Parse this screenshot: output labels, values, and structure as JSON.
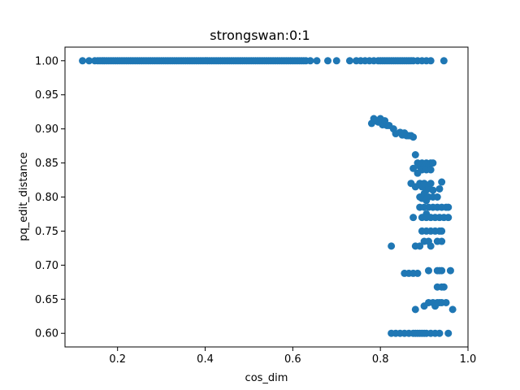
{
  "chart_data": {
    "type": "scatter",
    "title": "strongswan:0:1",
    "xlabel": "cos_dim",
    "ylabel": "pq_edit_distance",
    "xlim": [
      0.08,
      1.0
    ],
    "ylim": [
      0.58,
      1.02
    ],
    "xticks": [
      0.2,
      0.4,
      0.6,
      0.8,
      1.0
    ],
    "xtick_labels": [
      "0.2",
      "0.4",
      "0.6",
      "0.8",
      "1.0"
    ],
    "yticks": [
      0.6,
      0.65,
      0.7,
      0.75,
      0.8,
      0.85,
      0.9,
      0.95,
      1.0
    ],
    "ytick_labels": [
      "0.60",
      "0.65",
      "0.70",
      "0.75",
      "0.80",
      "0.85",
      "0.90",
      "0.95",
      "1.00"
    ],
    "grid": false,
    "marker_color": "#1f77b4",
    "series": [
      {
        "points": [
          [
            0.12,
            1.0
          ],
          [
            0.135,
            1.0
          ],
          [
            0.148,
            1.0
          ],
          [
            0.155,
            1.0
          ],
          [
            0.16,
            1.0
          ],
          [
            0.165,
            1.0
          ],
          [
            0.17,
            1.0
          ],
          [
            0.175,
            1.0
          ],
          [
            0.18,
            1.0
          ],
          [
            0.185,
            1.0
          ],
          [
            0.19,
            1.0
          ],
          [
            0.195,
            1.0
          ],
          [
            0.2,
            1.0
          ],
          [
            0.205,
            1.0
          ],
          [
            0.21,
            1.0
          ],
          [
            0.215,
            1.0
          ],
          [
            0.22,
            1.0
          ],
          [
            0.225,
            1.0
          ],
          [
            0.23,
            1.0
          ],
          [
            0.235,
            1.0
          ],
          [
            0.24,
            1.0
          ],
          [
            0.245,
            1.0
          ],
          [
            0.25,
            1.0
          ],
          [
            0.255,
            1.0
          ],
          [
            0.26,
            1.0
          ],
          [
            0.265,
            1.0
          ],
          [
            0.27,
            1.0
          ],
          [
            0.275,
            1.0
          ],
          [
            0.28,
            1.0
          ],
          [
            0.285,
            1.0
          ],
          [
            0.29,
            1.0
          ],
          [
            0.295,
            1.0
          ],
          [
            0.3,
            1.0
          ],
          [
            0.305,
            1.0
          ],
          [
            0.31,
            1.0
          ],
          [
            0.315,
            1.0
          ],
          [
            0.32,
            1.0
          ],
          [
            0.325,
            1.0
          ],
          [
            0.33,
            1.0
          ],
          [
            0.335,
            1.0
          ],
          [
            0.34,
            1.0
          ],
          [
            0.345,
            1.0
          ],
          [
            0.35,
            1.0
          ],
          [
            0.355,
            1.0
          ],
          [
            0.36,
            1.0
          ],
          [
            0.365,
            1.0
          ],
          [
            0.37,
            1.0
          ],
          [
            0.375,
            1.0
          ],
          [
            0.38,
            1.0
          ],
          [
            0.385,
            1.0
          ],
          [
            0.39,
            1.0
          ],
          [
            0.395,
            1.0
          ],
          [
            0.4,
            1.0
          ],
          [
            0.405,
            1.0
          ],
          [
            0.41,
            1.0
          ],
          [
            0.415,
            1.0
          ],
          [
            0.42,
            1.0
          ],
          [
            0.425,
            1.0
          ],
          [
            0.43,
            1.0
          ],
          [
            0.435,
            1.0
          ],
          [
            0.44,
            1.0
          ],
          [
            0.445,
            1.0
          ],
          [
            0.45,
            1.0
          ],
          [
            0.455,
            1.0
          ],
          [
            0.46,
            1.0
          ],
          [
            0.465,
            1.0
          ],
          [
            0.47,
            1.0
          ],
          [
            0.475,
            1.0
          ],
          [
            0.48,
            1.0
          ],
          [
            0.485,
            1.0
          ],
          [
            0.49,
            1.0
          ],
          [
            0.495,
            1.0
          ],
          [
            0.5,
            1.0
          ],
          [
            0.505,
            1.0
          ],
          [
            0.51,
            1.0
          ],
          [
            0.515,
            1.0
          ],
          [
            0.52,
            1.0
          ],
          [
            0.525,
            1.0
          ],
          [
            0.53,
            1.0
          ],
          [
            0.535,
            1.0
          ],
          [
            0.54,
            1.0
          ],
          [
            0.545,
            1.0
          ],
          [
            0.55,
            1.0
          ],
          [
            0.555,
            1.0
          ],
          [
            0.56,
            1.0
          ],
          [
            0.565,
            1.0
          ],
          [
            0.57,
            1.0
          ],
          [
            0.575,
            1.0
          ],
          [
            0.58,
            1.0
          ],
          [
            0.585,
            1.0
          ],
          [
            0.59,
            1.0
          ],
          [
            0.595,
            1.0
          ],
          [
            0.6,
            1.0
          ],
          [
            0.605,
            1.0
          ],
          [
            0.61,
            1.0
          ],
          [
            0.615,
            1.0
          ],
          [
            0.62,
            1.0
          ],
          [
            0.625,
            1.0
          ],
          [
            0.63,
            1.0
          ],
          [
            0.64,
            1.0
          ],
          [
            0.655,
            1.0
          ],
          [
            0.68,
            1.0
          ],
          [
            0.7,
            1.0
          ],
          [
            0.73,
            1.0
          ],
          [
            0.745,
            1.0
          ],
          [
            0.755,
            1.0
          ],
          [
            0.765,
            1.0
          ],
          [
            0.775,
            1.0
          ],
          [
            0.785,
            1.0
          ],
          [
            0.795,
            1.0
          ],
          [
            0.8,
            1.0
          ],
          [
            0.805,
            1.0
          ],
          [
            0.81,
            1.0
          ],
          [
            0.815,
            1.0
          ],
          [
            0.82,
            1.0
          ],
          [
            0.825,
            1.0
          ],
          [
            0.83,
            1.0
          ],
          [
            0.835,
            1.0
          ],
          [
            0.84,
            1.0
          ],
          [
            0.845,
            1.0
          ],
          [
            0.85,
            1.0
          ],
          [
            0.855,
            1.0
          ],
          [
            0.86,
            1.0
          ],
          [
            0.865,
            1.0
          ],
          [
            0.87,
            1.0
          ],
          [
            0.875,
            1.0
          ],
          [
            0.885,
            1.0
          ],
          [
            0.895,
            1.0
          ],
          [
            0.905,
            1.0
          ],
          [
            0.915,
            1.0
          ],
          [
            0.945,
            1.0
          ],
          [
            0.78,
            0.908
          ],
          [
            0.785,
            0.915
          ],
          [
            0.79,
            0.912
          ],
          [
            0.795,
            0.91
          ],
          [
            0.8,
            0.915
          ],
          [
            0.805,
            0.906
          ],
          [
            0.81,
            0.912
          ],
          [
            0.815,
            0.905
          ],
          [
            0.82,
            0.905
          ],
          [
            0.83,
            0.9
          ],
          [
            0.835,
            0.893
          ],
          [
            0.845,
            0.895
          ],
          [
            0.85,
            0.891
          ],
          [
            0.855,
            0.894
          ],
          [
            0.86,
            0.89
          ],
          [
            0.865,
            0.89
          ],
          [
            0.87,
            0.89
          ],
          [
            0.875,
            0.888
          ],
          [
            0.88,
            0.862
          ],
          [
            0.885,
            0.85
          ],
          [
            0.89,
            0.845
          ],
          [
            0.895,
            0.85
          ],
          [
            0.9,
            0.845
          ],
          [
            0.905,
            0.85
          ],
          [
            0.91,
            0.845
          ],
          [
            0.915,
            0.85
          ],
          [
            0.92,
            0.85
          ],
          [
            0.875,
            0.842
          ],
          [
            0.885,
            0.835
          ],
          [
            0.895,
            0.84
          ],
          [
            0.905,
            0.84
          ],
          [
            0.915,
            0.84
          ],
          [
            0.87,
            0.82
          ],
          [
            0.88,
            0.815
          ],
          [
            0.89,
            0.82
          ],
          [
            0.895,
            0.815
          ],
          [
            0.9,
            0.82
          ],
          [
            0.905,
            0.81
          ],
          [
            0.91,
            0.815
          ],
          [
            0.915,
            0.82
          ],
          [
            0.92,
            0.81
          ],
          [
            0.94,
            0.822
          ],
          [
            0.935,
            0.812
          ],
          [
            0.89,
            0.8
          ],
          [
            0.9,
            0.805
          ],
          [
            0.91,
            0.8
          ],
          [
            0.92,
            0.8
          ],
          [
            0.93,
            0.8
          ],
          [
            0.895,
            0.798
          ],
          [
            0.905,
            0.795
          ],
          [
            0.89,
            0.785
          ],
          [
            0.9,
            0.785
          ],
          [
            0.91,
            0.785
          ],
          [
            0.92,
            0.785
          ],
          [
            0.93,
            0.785
          ],
          [
            0.94,
            0.785
          ],
          [
            0.95,
            0.785
          ],
          [
            0.955,
            0.785
          ],
          [
            0.905,
            0.775
          ],
          [
            0.875,
            0.77
          ],
          [
            0.895,
            0.77
          ],
          [
            0.905,
            0.77
          ],
          [
            0.915,
            0.77
          ],
          [
            0.925,
            0.77
          ],
          [
            0.935,
            0.77
          ],
          [
            0.945,
            0.77
          ],
          [
            0.955,
            0.77
          ],
          [
            0.895,
            0.75
          ],
          [
            0.905,
            0.75
          ],
          [
            0.915,
            0.75
          ],
          [
            0.925,
            0.75
          ],
          [
            0.935,
            0.75
          ],
          [
            0.94,
            0.75
          ],
          [
            0.9,
            0.735
          ],
          [
            0.91,
            0.735
          ],
          [
            0.93,
            0.735
          ],
          [
            0.94,
            0.735
          ],
          [
            0.825,
            0.728
          ],
          [
            0.88,
            0.728
          ],
          [
            0.89,
            0.728
          ],
          [
            0.915,
            0.728
          ],
          [
            0.91,
            0.692
          ],
          [
            0.93,
            0.692
          ],
          [
            0.935,
            0.692
          ],
          [
            0.94,
            0.692
          ],
          [
            0.96,
            0.692
          ],
          [
            0.855,
            0.688
          ],
          [
            0.865,
            0.688
          ],
          [
            0.875,
            0.688
          ],
          [
            0.885,
            0.688
          ],
          [
            0.93,
            0.668
          ],
          [
            0.94,
            0.668
          ],
          [
            0.945,
            0.668
          ],
          [
            0.91,
            0.645
          ],
          [
            0.92,
            0.645
          ],
          [
            0.93,
            0.645
          ],
          [
            0.935,
            0.645
          ],
          [
            0.94,
            0.645
          ],
          [
            0.95,
            0.645
          ],
          [
            0.9,
            0.64
          ],
          [
            0.925,
            0.64
          ],
          [
            0.88,
            0.635
          ],
          [
            0.965,
            0.635
          ],
          [
            0.825,
            0.6
          ],
          [
            0.835,
            0.6
          ],
          [
            0.845,
            0.6
          ],
          [
            0.855,
            0.6
          ],
          [
            0.865,
            0.6
          ],
          [
            0.875,
            0.6
          ],
          [
            0.88,
            0.6
          ],
          [
            0.885,
            0.6
          ],
          [
            0.89,
            0.6
          ],
          [
            0.895,
            0.6
          ],
          [
            0.9,
            0.6
          ],
          [
            0.905,
            0.6
          ],
          [
            0.915,
            0.6
          ],
          [
            0.925,
            0.6
          ],
          [
            0.935,
            0.6
          ],
          [
            0.955,
            0.6
          ]
        ]
      }
    ]
  }
}
